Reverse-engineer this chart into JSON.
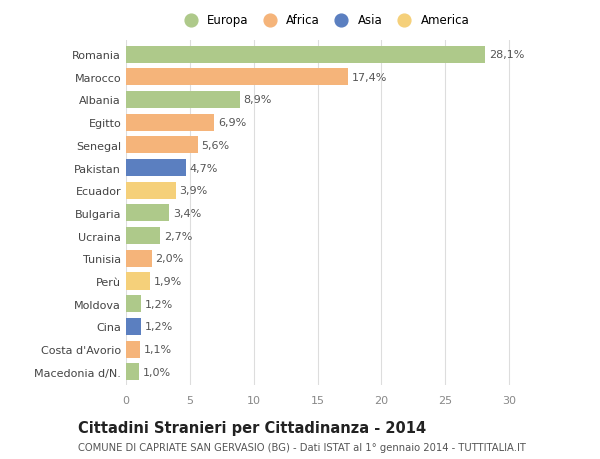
{
  "categories": [
    "Romania",
    "Marocco",
    "Albania",
    "Egitto",
    "Senegal",
    "Pakistan",
    "Ecuador",
    "Bulgaria",
    "Ucraina",
    "Tunisia",
    "Perù",
    "Moldova",
    "Cina",
    "Costa d'Avorio",
    "Macedonia d/N."
  ],
  "values": [
    28.1,
    17.4,
    8.9,
    6.9,
    5.6,
    4.7,
    3.9,
    3.4,
    2.7,
    2.0,
    1.9,
    1.2,
    1.2,
    1.1,
    1.0
  ],
  "labels": [
    "28,1%",
    "17,4%",
    "8,9%",
    "6,9%",
    "5,6%",
    "4,7%",
    "3,9%",
    "3,4%",
    "2,7%",
    "2,0%",
    "1,9%",
    "1,2%",
    "1,2%",
    "1,1%",
    "1,0%"
  ],
  "continents": [
    "Europa",
    "Africa",
    "Europa",
    "Africa",
    "Africa",
    "Asia",
    "America",
    "Europa",
    "Europa",
    "Africa",
    "America",
    "Europa",
    "Asia",
    "Africa",
    "Europa"
  ],
  "colors": {
    "Europa": "#aec98a",
    "Africa": "#f5b47a",
    "Asia": "#5b7fc0",
    "America": "#f5d07a"
  },
  "legend_order": [
    "Europa",
    "Africa",
    "Asia",
    "America"
  ],
  "title": "Cittadini Stranieri per Cittadinanza - 2014",
  "subtitle": "COMUNE DI CAPRIATE SAN GERVASIO (BG) - Dati ISTAT al 1° gennaio 2014 - TUTTITALIA.IT",
  "xlim": [
    0,
    31
  ],
  "xticks": [
    0,
    5,
    10,
    15,
    20,
    25,
    30
  ],
  "background_color": "#ffffff",
  "grid_color": "#dddddd",
  "bar_height": 0.75,
  "label_fontsize": 8.0,
  "tick_fontsize": 8.0,
  "title_fontsize": 10.5,
  "subtitle_fontsize": 7.2
}
